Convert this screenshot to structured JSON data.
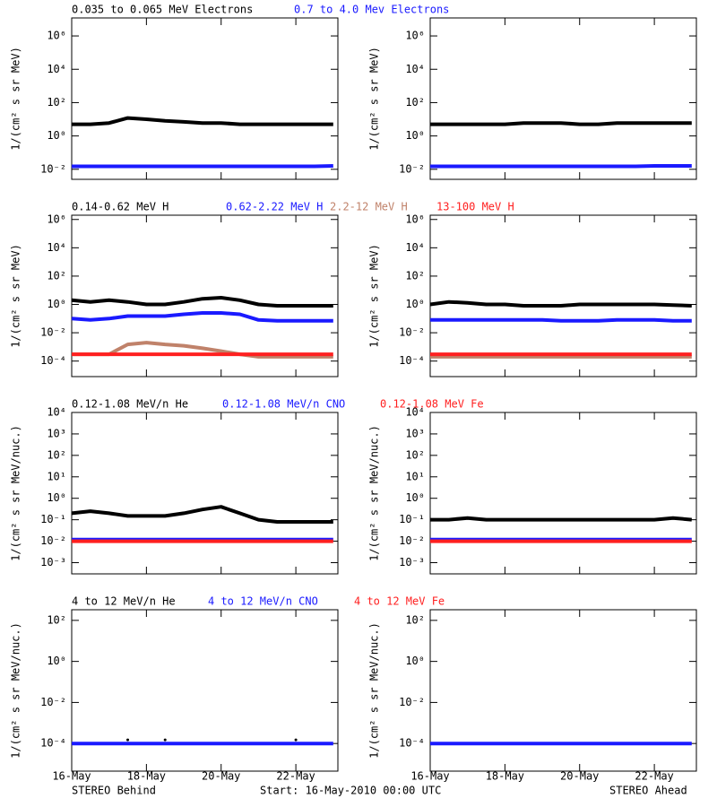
{
  "chart_data": [
    {
      "type": "line",
      "ylabel": "1/(cm² s sr MeV)",
      "log_y": true,
      "xlim": [
        16,
        23.125
      ],
      "ylim": [
        0.0025,
        12000000
      ],
      "yticks": [
        {
          "value": 1000000,
          "label": "10⁶"
        },
        {
          "value": 10000,
          "label": "10⁴"
        },
        {
          "value": 100,
          "label": "10²"
        },
        {
          "value": 1,
          "label": "10⁰"
        },
        {
          "value": 0.01,
          "label": "10⁻²"
        }
      ],
      "x": [
        16,
        16.5,
        17,
        17.5,
        18,
        18.5,
        19,
        19.5,
        20,
        20.5,
        21,
        21.5,
        22,
        22.5,
        23
      ],
      "series": [
        {
          "name": "0.035 to 0.065 MeV Electrons",
          "color": "#000000",
          "values": [
            5,
            5,
            6,
            12,
            10,
            8,
            7,
            6,
            6,
            5,
            5,
            5,
            5,
            5,
            5
          ]
        },
        {
          "name": "0.7 to 4.0 Mev Electrons",
          "color": "#1a1aff",
          "values": [
            0.015,
            0.015,
            0.015,
            0.015,
            0.015,
            0.015,
            0.015,
            0.015,
            0.015,
            0.015,
            0.015,
            0.015,
            0.015,
            0.015,
            0.016
          ]
        }
      ]
    },
    {
      "type": "line",
      "ylabel": "1/(cm² s sr MeV)",
      "log_y": true,
      "xlim": [
        16,
        23.125
      ],
      "ylim": [
        0.0025,
        12000000
      ],
      "yticks": [
        {
          "value": 1000000,
          "label": "10⁶"
        },
        {
          "value": 10000,
          "label": "10⁴"
        },
        {
          "value": 100,
          "label": "10²"
        },
        {
          "value": 1,
          "label": "10⁰"
        },
        {
          "value": 0.01,
          "label": "10⁻²"
        }
      ],
      "x": [
        16,
        16.5,
        17,
        17.5,
        18,
        18.5,
        19,
        19.5,
        20,
        20.5,
        21,
        21.5,
        22,
        22.5,
        23
      ],
      "series": [
        {
          "color": "#000000",
          "values": [
            5,
            5,
            5,
            5,
            5,
            6,
            6,
            6,
            5,
            5,
            6,
            6,
            6,
            6,
            6
          ]
        },
        {
          "color": "#1a1aff",
          "values": [
            0.015,
            0.015,
            0.015,
            0.015,
            0.015,
            0.015,
            0.015,
            0.015,
            0.015,
            0.015,
            0.015,
            0.015,
            0.016,
            0.016,
            0.016
          ]
        }
      ]
    },
    {
      "type": "line",
      "ylabel": "1/(cm² s sr MeV)",
      "log_y": true,
      "xlim": [
        16,
        23.125
      ],
      "ylim": [
        8e-06,
        2000000
      ],
      "yticks": [
        {
          "value": 1000000,
          "label": "10⁶"
        },
        {
          "value": 10000,
          "label": "10⁴"
        },
        {
          "value": 100,
          "label": "10²"
        },
        {
          "value": 1,
          "label": "10⁰"
        },
        {
          "value": 0.01,
          "label": "10⁻²"
        },
        {
          "value": 0.0001,
          "label": "10⁻⁴"
        }
      ],
      "x": [
        16,
        16.5,
        17,
        17.5,
        18,
        18.5,
        19,
        19.5,
        20,
        20.5,
        21,
        21.5,
        22,
        22.5,
        23
      ],
      "series": [
        {
          "name": "0.14-0.62 MeV H",
          "color": "#000000",
          "values": [
            2,
            1.5,
            2,
            1.5,
            1,
            1,
            1.5,
            2.5,
            3,
            2,
            1,
            0.8,
            0.8,
            0.8,
            0.8
          ]
        },
        {
          "name": "0.62-2.22 MeV H",
          "color": "#1a1aff",
          "values": [
            0.1,
            0.08,
            0.1,
            0.15,
            0.15,
            0.15,
            0.2,
            0.25,
            0.25,
            0.2,
            0.08,
            0.07,
            0.07,
            0.07,
            0.07
          ]
        },
        {
          "name": "2.2-12 MeV H",
          "color": "#c0826a",
          "values": [
            0.0003,
            0.0003,
            0.0003,
            0.0015,
            0.002,
            0.0015,
            0.0012,
            0.0008,
            0.0005,
            0.0003,
            0.0002,
            0.0002,
            0.0002,
            0.0002,
            0.0002
          ]
        },
        {
          "name": "13-100 MeV H",
          "color": "#ff2020",
          "values": [
            0.0003,
            0.0003,
            0.0003,
            0.0003,
            0.0003,
            0.0003,
            0.0003,
            0.0003,
            0.0003,
            0.0003,
            0.0003,
            0.0003,
            0.0003,
            0.0003,
            0.0003
          ]
        }
      ]
    },
    {
      "type": "line",
      "ylabel": "1/(cm² s sr MeV)",
      "log_y": true,
      "xlim": [
        16,
        23.125
      ],
      "ylim": [
        8e-06,
        2000000
      ],
      "yticks": [
        {
          "value": 1000000,
          "label": "10⁶"
        },
        {
          "value": 10000,
          "label": "10⁴"
        },
        {
          "value": 100,
          "label": "10²"
        },
        {
          "value": 1,
          "label": "10⁰"
        },
        {
          "value": 0.01,
          "label": "10⁻²"
        },
        {
          "value": 0.0001,
          "label": "10⁻⁴"
        }
      ],
      "x": [
        16,
        16.5,
        17,
        17.5,
        18,
        18.5,
        19,
        19.5,
        20,
        20.5,
        21,
        21.5,
        22,
        22.5,
        23
      ],
      "series": [
        {
          "color": "#000000",
          "values": [
            1,
            1.5,
            1.3,
            1,
            1,
            0.8,
            0.8,
            0.8,
            1,
            1,
            1,
            1,
            1,
            0.9,
            0.8
          ]
        },
        {
          "color": "#1a1aff",
          "values": [
            0.08,
            0.08,
            0.08,
            0.08,
            0.08,
            0.08,
            0.08,
            0.07,
            0.07,
            0.07,
            0.08,
            0.08,
            0.08,
            0.07,
            0.07
          ]
        },
        {
          "color": "#c0826a",
          "values": [
            0.0002,
            0.0002,
            0.0002,
            0.0002,
            0.0002,
            0.0002,
            0.0002,
            0.0002,
            0.0002,
            0.0002,
            0.0002,
            0.0002,
            0.0002,
            0.0002,
            0.0002
          ]
        },
        {
          "color": "#ff2020",
          "values": [
            0.0003,
            0.0003,
            0.0003,
            0.0003,
            0.0003,
            0.0003,
            0.0003,
            0.0003,
            0.0003,
            0.0003,
            0.0003,
            0.0003,
            0.0003,
            0.0003,
            0.0003
          ]
        }
      ]
    },
    {
      "type": "line",
      "ylabel": "1/(cm² s sr MeV/nuc.)",
      "log_y": true,
      "xlim": [
        16,
        23.125
      ],
      "ylim": [
        0.0003,
        10000
      ],
      "yticks": [
        {
          "value": 10000,
          "label": "10⁴"
        },
        {
          "value": 1000,
          "label": "10³"
        },
        {
          "value": 100,
          "label": "10²"
        },
        {
          "value": 10,
          "label": "10¹"
        },
        {
          "value": 1,
          "label": "10⁰"
        },
        {
          "value": 0.1,
          "label": "10⁻¹"
        },
        {
          "value": 0.01,
          "label": "10⁻²"
        },
        {
          "value": 0.001,
          "label": "10⁻³"
        }
      ],
      "x": [
        16,
        16.5,
        17,
        17.5,
        18,
        18.5,
        19,
        19.5,
        20,
        20.5,
        21,
        21.5,
        22,
        22.5,
        23
      ],
      "series": [
        {
          "name": "0.12-1.08 MeV/n He",
          "color": "#000000",
          "values": [
            0.2,
            0.25,
            0.2,
            0.15,
            0.15,
            0.15,
            0.2,
            0.3,
            0.4,
            0.2,
            0.1,
            0.08,
            0.08,
            0.08,
            0.08
          ]
        },
        {
          "name": "0.12-1.08 MeV/n CNO",
          "color": "#1a1aff",
          "values": [
            0.012,
            0.012,
            0.012,
            0.012,
            0.012,
            0.012,
            0.012,
            0.012,
            0.012,
            0.012,
            0.012,
            0.012,
            0.012,
            0.012,
            0.012
          ]
        },
        {
          "name": "0.12-1.08 MeV Fe",
          "color": "#ff2020",
          "values": [
            0.01,
            0.01,
            0.01,
            0.01,
            0.01,
            0.01,
            0.01,
            0.01,
            0.01,
            0.01,
            0.01,
            0.01,
            0.01,
            0.01,
            0.01
          ]
        }
      ]
    },
    {
      "type": "line",
      "ylabel": "1/(cm² s sr MeV/nuc.)",
      "log_y": true,
      "xlim": [
        16,
        23.125
      ],
      "ylim": [
        0.0003,
        10000
      ],
      "yticks": [
        {
          "value": 10000,
          "label": "10⁴"
        },
        {
          "value": 1000,
          "label": "10³"
        },
        {
          "value": 100,
          "label": "10²"
        },
        {
          "value": 10,
          "label": "10¹"
        },
        {
          "value": 1,
          "label": "10⁰"
        },
        {
          "value": 0.1,
          "label": "10⁻¹"
        },
        {
          "value": 0.01,
          "label": "10⁻²"
        },
        {
          "value": 0.001,
          "label": "10⁻³"
        }
      ],
      "x": [
        16,
        16.5,
        17,
        17.5,
        18,
        18.5,
        19,
        19.5,
        20,
        20.5,
        21,
        21.5,
        22,
        22.5,
        23
      ],
      "series": [
        {
          "color": "#000000",
          "values": [
            0.1,
            0.1,
            0.12,
            0.1,
            0.1,
            0.1,
            0.1,
            0.1,
            0.1,
            0.1,
            0.1,
            0.1,
            0.1,
            0.12,
            0.1
          ]
        },
        {
          "color": "#1a1aff",
          "values": [
            0.012,
            0.012,
            0.012,
            0.012,
            0.012,
            0.012,
            0.012,
            0.012,
            0.012,
            0.012,
            0.012,
            0.012,
            0.012,
            0.012,
            0.012
          ]
        },
        {
          "color": "#ff2020",
          "values": [
            0.01,
            0.01,
            0.01,
            0.01,
            0.01,
            0.01,
            0.01,
            0.01,
            0.01,
            0.01,
            0.01,
            0.01,
            0.01,
            0.01,
            0.01
          ]
        }
      ]
    },
    {
      "type": "line",
      "ylabel": "1/(cm² s sr MeV/nuc.)",
      "log_y": true,
      "xlim": [
        16,
        23.125
      ],
      "ylim": [
        4.5e-06,
        330
      ],
      "yticks": [
        {
          "value": 100,
          "label": "10²"
        },
        {
          "value": 1,
          "label": "10⁰"
        },
        {
          "value": 0.01,
          "label": "10⁻²"
        },
        {
          "value": 0.0001,
          "label": "10⁻⁴"
        }
      ],
      "xticks": [
        {
          "value": 16,
          "label": "16-May"
        },
        {
          "value": 18,
          "label": "18-May"
        },
        {
          "value": 20,
          "label": "20-May"
        },
        {
          "value": 22,
          "label": "22-May"
        }
      ],
      "x": [
        16,
        16.5,
        17,
        17.5,
        18,
        18.5,
        19,
        19.5,
        20,
        20.5,
        21,
        21.5,
        22,
        22.5,
        23
      ],
      "series": [
        {
          "name": "4 to 12 MeV/n He",
          "color": "#000000",
          "values": [
            null,
            null,
            null,
            0.00015,
            null,
            0.00015,
            null,
            null,
            null,
            null,
            null,
            null,
            0.00015,
            null,
            null
          ]
        },
        {
          "name": "4 to 12 MeV/n CNO",
          "color": "#1a1aff",
          "values": [
            0.0001,
            0.0001,
            0.0001,
            0.0001,
            0.0001,
            0.0001,
            0.0001,
            0.0001,
            0.0001,
            0.0001,
            0.0001,
            0.0001,
            0.0001,
            0.0001,
            0.0001
          ]
        },
        {
          "name": "4 to 12 MeV Fe",
          "color": "#ff2020",
          "values": [
            null,
            null,
            null,
            null,
            null,
            null,
            null,
            null,
            null,
            null,
            null,
            null,
            null,
            null,
            null
          ]
        }
      ]
    },
    {
      "type": "line",
      "ylabel": "1/(cm² s sr MeV/nuc.)",
      "log_y": true,
      "xlim": [
        16,
        23.125
      ],
      "ylim": [
        4.5e-06,
        330
      ],
      "yticks": [
        {
          "value": 100,
          "label": "10²"
        },
        {
          "value": 1,
          "label": "10⁰"
        },
        {
          "value": 0.01,
          "label": "10⁻²"
        },
        {
          "value": 0.0001,
          "label": "10⁻⁴"
        }
      ],
      "xticks": [
        {
          "value": 16,
          "label": "16-May"
        },
        {
          "value": 18,
          "label": "18-May"
        },
        {
          "value": 20,
          "label": "20-May"
        },
        {
          "value": 22,
          "label": "22-May"
        }
      ],
      "x": [
        16,
        16.5,
        17,
        17.5,
        18,
        18.5,
        19,
        19.5,
        20,
        20.5,
        21,
        21.5,
        22,
        22.5,
        23
      ],
      "series": [
        {
          "color": "#000000",
          "values": [
            null,
            null,
            null,
            null,
            null,
            null,
            null,
            null,
            null,
            null,
            null,
            null,
            null,
            null,
            null
          ]
        },
        {
          "color": "#1a1aff",
          "values": [
            0.0001,
            0.0001,
            0.0001,
            0.0001,
            0.0001,
            0.0001,
            0.0001,
            0.0001,
            0.0001,
            0.0001,
            0.0001,
            0.0001,
            0.0001,
            0.0001,
            0.0001
          ]
        },
        {
          "color": "#ff2020",
          "values": [
            null,
            null,
            null,
            null,
            null,
            null,
            null,
            null,
            null,
            null,
            null,
            null,
            null,
            null,
            null
          ]
        }
      ]
    }
  ],
  "footer": {
    "left": "STEREO Behind",
    "center": "Start: 16-May-2010 00:00 UTC",
    "right": "STEREO Ahead"
  }
}
